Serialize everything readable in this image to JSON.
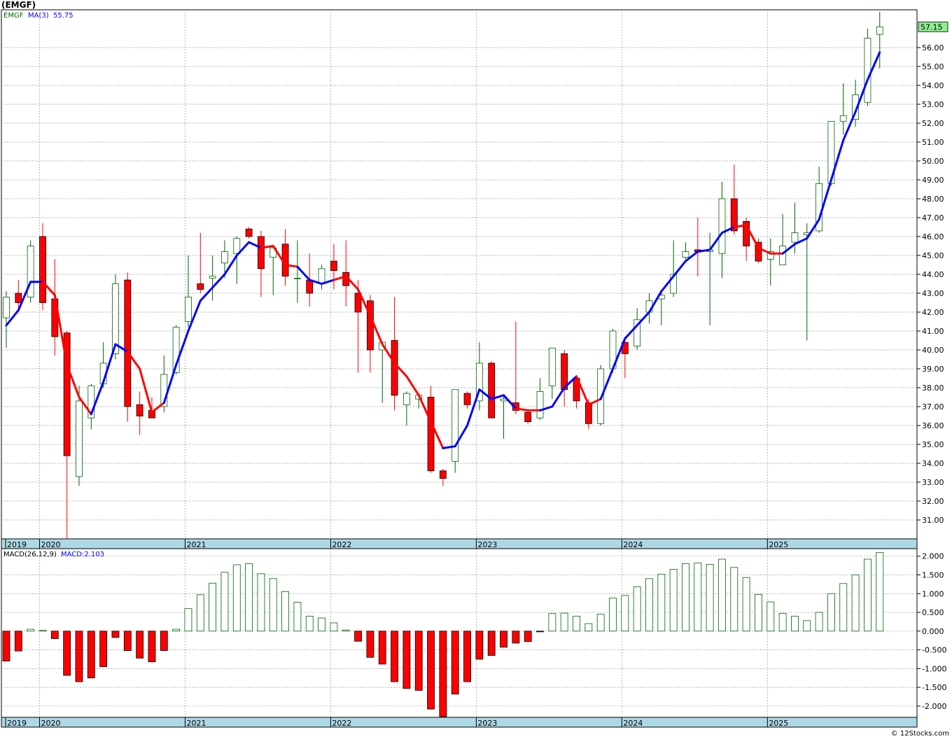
{
  "header": {
    "title": "(EMGF)"
  },
  "footer": {
    "credit": "© 12Stocks.com"
  },
  "colors": {
    "up": "#006400",
    "down": "#ff0000",
    "ma_up": "#0000ff",
    "ma_down": "#ff0000",
    "axis_band": "#add8e6",
    "grid": "#999999"
  },
  "chart_data": [
    {
      "type": "candlestick",
      "legend": {
        "symbol": "EMGF",
        "ma_label": "MA(3)",
        "ma_value": "55.75"
      },
      "last_price_label": "57.15",
      "ylim": [
        30.0,
        58.0
      ],
      "y_ticks": [
        31,
        32,
        33,
        34,
        35,
        36,
        37,
        38,
        39,
        40,
        41,
        42,
        43,
        44,
        45,
        46,
        47,
        48,
        49,
        50,
        51,
        52,
        53,
        54,
        55,
        56
      ],
      "y_tick_labels": [
        "31.00",
        "32.00",
        "33.00",
        "34.00",
        "35.00",
        "36.00",
        "37.00",
        "38.00",
        "39.00",
        "40.00",
        "41.00",
        "42.00",
        "43.00",
        "44.00",
        "45.00",
        "46.00",
        "47.00",
        "48.00",
        "49.00",
        "50.00",
        "51.00",
        "52.00",
        "53.00",
        "54.00",
        "55.00",
        "56.00"
      ],
      "x_labels": [
        "2019",
        "2020",
        "2021",
        "2022",
        "2023",
        "2024",
        "2025"
      ],
      "x_label_months": [
        0,
        2.8,
        14.8,
        26.8,
        38.8,
        50.8,
        62.8
      ],
      "candles": [
        {
          "o": 41.7,
          "h": 43.1,
          "l": 40.1,
          "c": 42.8
        },
        {
          "o": 43.0,
          "h": 43.7,
          "l": 42.0,
          "c": 42.5
        },
        {
          "o": 42.8,
          "h": 45.8,
          "l": 42.5,
          "c": 45.5
        },
        {
          "o": 46.0,
          "h": 46.7,
          "l": 42.1,
          "c": 42.5
        },
        {
          "o": 42.7,
          "h": 44.8,
          "l": 39.7,
          "c": 40.7
        },
        {
          "o": 40.9,
          "h": 41.0,
          "l": 30.0,
          "c": 34.4
        },
        {
          "o": 33.3,
          "h": 38.1,
          "l": 32.8,
          "c": 37.3
        },
        {
          "o": 36.4,
          "h": 38.2,
          "l": 35.8,
          "c": 38.1
        },
        {
          "o": 38.2,
          "h": 40.4,
          "l": 38.0,
          "c": 39.3
        },
        {
          "o": 39.8,
          "h": 44.0,
          "l": 39.5,
          "c": 43.5
        },
        {
          "o": 43.7,
          "h": 44.1,
          "l": 36.2,
          "c": 37.0
        },
        {
          "o": 37.1,
          "h": 37.8,
          "l": 35.5,
          "c": 36.5
        },
        {
          "o": 36.8,
          "h": 37.5,
          "l": 36.4,
          "c": 36.4
        },
        {
          "o": 37.0,
          "h": 39.7,
          "l": 36.7,
          "c": 38.7
        },
        {
          "o": 38.8,
          "h": 41.3,
          "l": 38.7,
          "c": 41.2
        },
        {
          "o": 41.5,
          "h": 45.0,
          "l": 41.2,
          "c": 42.8
        },
        {
          "o": 43.5,
          "h": 46.2,
          "l": 43.0,
          "c": 43.2
        },
        {
          "o": 43.8,
          "h": 45.0,
          "l": 42.6,
          "c": 43.9
        },
        {
          "o": 44.6,
          "h": 45.8,
          "l": 43.8,
          "c": 45.2
        },
        {
          "o": 45.1,
          "h": 46.0,
          "l": 43.5,
          "c": 45.9
        },
        {
          "o": 46.4,
          "h": 46.5,
          "l": 45.9,
          "c": 46.0
        },
        {
          "o": 46.0,
          "h": 46.3,
          "l": 42.8,
          "c": 44.3
        },
        {
          "o": 44.9,
          "h": 45.5,
          "l": 42.9,
          "c": 45.4
        },
        {
          "o": 45.6,
          "h": 46.4,
          "l": 43.4,
          "c": 43.9
        },
        {
          "o": 43.8,
          "h": 45.8,
          "l": 42.5,
          "c": 43.8
        },
        {
          "o": 43.7,
          "h": 45.1,
          "l": 42.3,
          "c": 43.0
        },
        {
          "o": 43.5,
          "h": 44.5,
          "l": 43.2,
          "c": 44.3
        },
        {
          "o": 44.7,
          "h": 45.6,
          "l": 43.2,
          "c": 44.2
        },
        {
          "o": 44.1,
          "h": 45.8,
          "l": 42.3,
          "c": 43.4
        },
        {
          "o": 43.0,
          "h": 43.7,
          "l": 38.8,
          "c": 42.0
        },
        {
          "o": 42.6,
          "h": 42.9,
          "l": 38.8,
          "c": 40.0
        },
        {
          "o": 40.0,
          "h": 40.3,
          "l": 37.2,
          "c": 40.4
        },
        {
          "o": 40.5,
          "h": 42.8,
          "l": 36.8,
          "c": 37.6
        },
        {
          "o": 37.1,
          "h": 37.8,
          "l": 36.0,
          "c": 37.7
        },
        {
          "o": 37.4,
          "h": 37.7,
          "l": 36.9,
          "c": 37.6
        },
        {
          "o": 37.5,
          "h": 38.1,
          "l": 33.5,
          "c": 33.6
        },
        {
          "o": 33.6,
          "h": 33.7,
          "l": 32.8,
          "c": 33.2
        },
        {
          "o": 34.1,
          "h": 37.9,
          "l": 33.5,
          "c": 37.9
        },
        {
          "o": 37.7,
          "h": 37.8,
          "l": 36.9,
          "c": 37.1
        },
        {
          "o": 37.3,
          "h": 40.4,
          "l": 36.8,
          "c": 39.3
        },
        {
          "o": 39.3,
          "h": 39.4,
          "l": 36.4,
          "c": 36.4
        },
        {
          "o": 37.3,
          "h": 37.6,
          "l": 35.3,
          "c": 37.4
        },
        {
          "o": 37.2,
          "h": 41.5,
          "l": 36.6,
          "c": 36.8
        },
        {
          "o": 36.7,
          "h": 36.8,
          "l": 36.1,
          "c": 36.2
        },
        {
          "o": 36.4,
          "h": 38.5,
          "l": 36.3,
          "c": 37.8
        },
        {
          "o": 38.1,
          "h": 40.1,
          "l": 37.4,
          "c": 40.1
        },
        {
          "o": 39.8,
          "h": 40.0,
          "l": 37.0,
          "c": 37.9
        },
        {
          "o": 38.5,
          "h": 38.6,
          "l": 36.9,
          "c": 37.3
        },
        {
          "o": 37.2,
          "h": 37.4,
          "l": 35.8,
          "c": 36.1
        },
        {
          "o": 36.1,
          "h": 39.2,
          "l": 36.0,
          "c": 39.0
        },
        {
          "o": 39.0,
          "h": 41.1,
          "l": 38.8,
          "c": 41.0
        },
        {
          "o": 40.4,
          "h": 40.6,
          "l": 38.5,
          "c": 39.8
        },
        {
          "o": 40.2,
          "h": 42.2,
          "l": 40.0,
          "c": 41.6
        },
        {
          "o": 42.0,
          "h": 43.0,
          "l": 41.4,
          "c": 42.6
        },
        {
          "o": 42.7,
          "h": 43.0,
          "l": 41.3,
          "c": 42.9
        },
        {
          "o": 43.0,
          "h": 45.8,
          "l": 42.8,
          "c": 44.0
        },
        {
          "o": 44.9,
          "h": 45.7,
          "l": 44.8,
          "c": 45.2
        },
        {
          "o": 45.3,
          "h": 47.0,
          "l": 43.9,
          "c": 45.2
        },
        {
          "o": 45.2,
          "h": 46.2,
          "l": 41.3,
          "c": 45.3
        },
        {
          "o": 45.1,
          "h": 48.9,
          "l": 43.8,
          "c": 48.0
        },
        {
          "o": 48.0,
          "h": 49.8,
          "l": 46.1,
          "c": 46.3
        },
        {
          "o": 46.8,
          "h": 47.0,
          "l": 44.7,
          "c": 45.5
        },
        {
          "o": 45.7,
          "h": 45.9,
          "l": 44.6,
          "c": 44.7
        },
        {
          "o": 44.8,
          "h": 45.9,
          "l": 43.4,
          "c": 45.2
        },
        {
          "o": 44.5,
          "h": 47.2,
          "l": 44.5,
          "c": 45.5
        },
        {
          "o": 45.7,
          "h": 47.8,
          "l": 45.1,
          "c": 46.2
        },
        {
          "o": 46.1,
          "h": 46.7,
          "l": 40.5,
          "c": 46.2
        },
        {
          "o": 46.3,
          "h": 49.7,
          "l": 46.2,
          "c": 48.8
        },
        {
          "o": 48.8,
          "h": 52.1,
          "l": 48.7,
          "c": 52.1
        },
        {
          "o": 52.1,
          "h": 54.1,
          "l": 51.4,
          "c": 52.4
        },
        {
          "o": 52.2,
          "h": 54.3,
          "l": 51.8,
          "c": 53.5
        },
        {
          "o": 53.1,
          "h": 57.0,
          "l": 52.9,
          "c": 56.5
        },
        {
          "o": 56.7,
          "h": 57.9,
          "l": 54.9,
          "c": 57.1
        }
      ],
      "ma": [
        41.3,
        42.1,
        43.6,
        43.6,
        42.9,
        39.2,
        37.5,
        36.6,
        38.3,
        40.3,
        39.9,
        39.0,
        36.7,
        37.2,
        39.2,
        41.0,
        42.6,
        43.3,
        44.0,
        45.0,
        45.7,
        45.4,
        45.5,
        44.5,
        44.4,
        43.7,
        43.5,
        43.7,
        43.9,
        43.2,
        41.8,
        40.3,
        39.3,
        38.6,
        37.6,
        36.2,
        34.8,
        34.9,
        36.0,
        37.9,
        37.4,
        37.6,
        36.9,
        36.8,
        36.8,
        37.0,
        38.0,
        38.6,
        37.1,
        37.4,
        39.0,
        40.6,
        41.3,
        42.0,
        43.1,
        43.9,
        44.7,
        45.2,
        45.3,
        46.2,
        46.5,
        46.6,
        45.4,
        45.1,
        45.1,
        45.6,
        45.9,
        46.9,
        49.0,
        51.1,
        52.6,
        54.3,
        55.75
      ],
      "ma_color_by_candle": [
        "up",
        "up",
        "up",
        "down",
        "down",
        "down",
        "down",
        "up",
        "up",
        "up",
        "down",
        "down",
        "down",
        "up",
        "up",
        "up",
        "up",
        "up",
        "up",
        "up",
        "up",
        "down",
        "down",
        "down",
        "up",
        "up",
        "up",
        "down",
        "down",
        "down",
        "down",
        "down",
        "down",
        "down",
        "down",
        "down",
        "up",
        "up",
        "up",
        "up",
        "up",
        "up",
        "down",
        "down",
        "up",
        "up",
        "up",
        "down",
        "down",
        "up",
        "up",
        "up",
        "up",
        "up",
        "up",
        "up",
        "up",
        "up",
        "up",
        "up",
        "down",
        "down",
        "down",
        "down",
        "up",
        "up",
        "up",
        "up",
        "up",
        "up",
        "up",
        "up",
        "up"
      ]
    },
    {
      "type": "bar",
      "legend": {
        "label": "MACD(26,12,9)",
        "value_label": "MACD:2.103"
      },
      "ylim": [
        -2.3,
        2.2
      ],
      "y_ticks": [
        -2.0,
        -1.5,
        -1.0,
        -0.5,
        0.0,
        0.5,
        1.0,
        1.5,
        2.0
      ],
      "y_tick_labels": [
        "-2.000",
        "-1.500",
        "-1.000",
        "-0.500",
        "0.000",
        "0.500",
        "1.000",
        "1.500",
        "2.000"
      ],
      "x_labels": [
        "2019",
        "2020",
        "2021",
        "2022",
        "2023",
        "2024",
        "2025"
      ],
      "values": [
        -0.8,
        -0.53,
        0.05,
        0.02,
        -0.2,
        -1.18,
        -1.35,
        -1.25,
        -0.95,
        -0.17,
        -0.52,
        -0.72,
        -0.82,
        -0.52,
        0.05,
        0.6,
        0.97,
        1.28,
        1.57,
        1.77,
        1.8,
        1.53,
        1.4,
        1.05,
        0.77,
        0.4,
        0.35,
        0.22,
        0.03,
        -0.27,
        -0.7,
        -0.88,
        -1.35,
        -1.53,
        -1.58,
        -2.08,
        -2.28,
        -1.68,
        -1.35,
        -0.75,
        -0.65,
        -0.43,
        -0.32,
        -0.28,
        -0.02,
        0.47,
        0.48,
        0.4,
        0.2,
        0.45,
        0.88,
        0.95,
        1.18,
        1.4,
        1.52,
        1.65,
        1.8,
        1.82,
        1.78,
        1.92,
        1.7,
        1.43,
        0.98,
        0.78,
        0.47,
        0.4,
        0.28,
        0.5,
        1.0,
        1.27,
        1.5,
        1.92,
        2.1
      ]
    }
  ]
}
